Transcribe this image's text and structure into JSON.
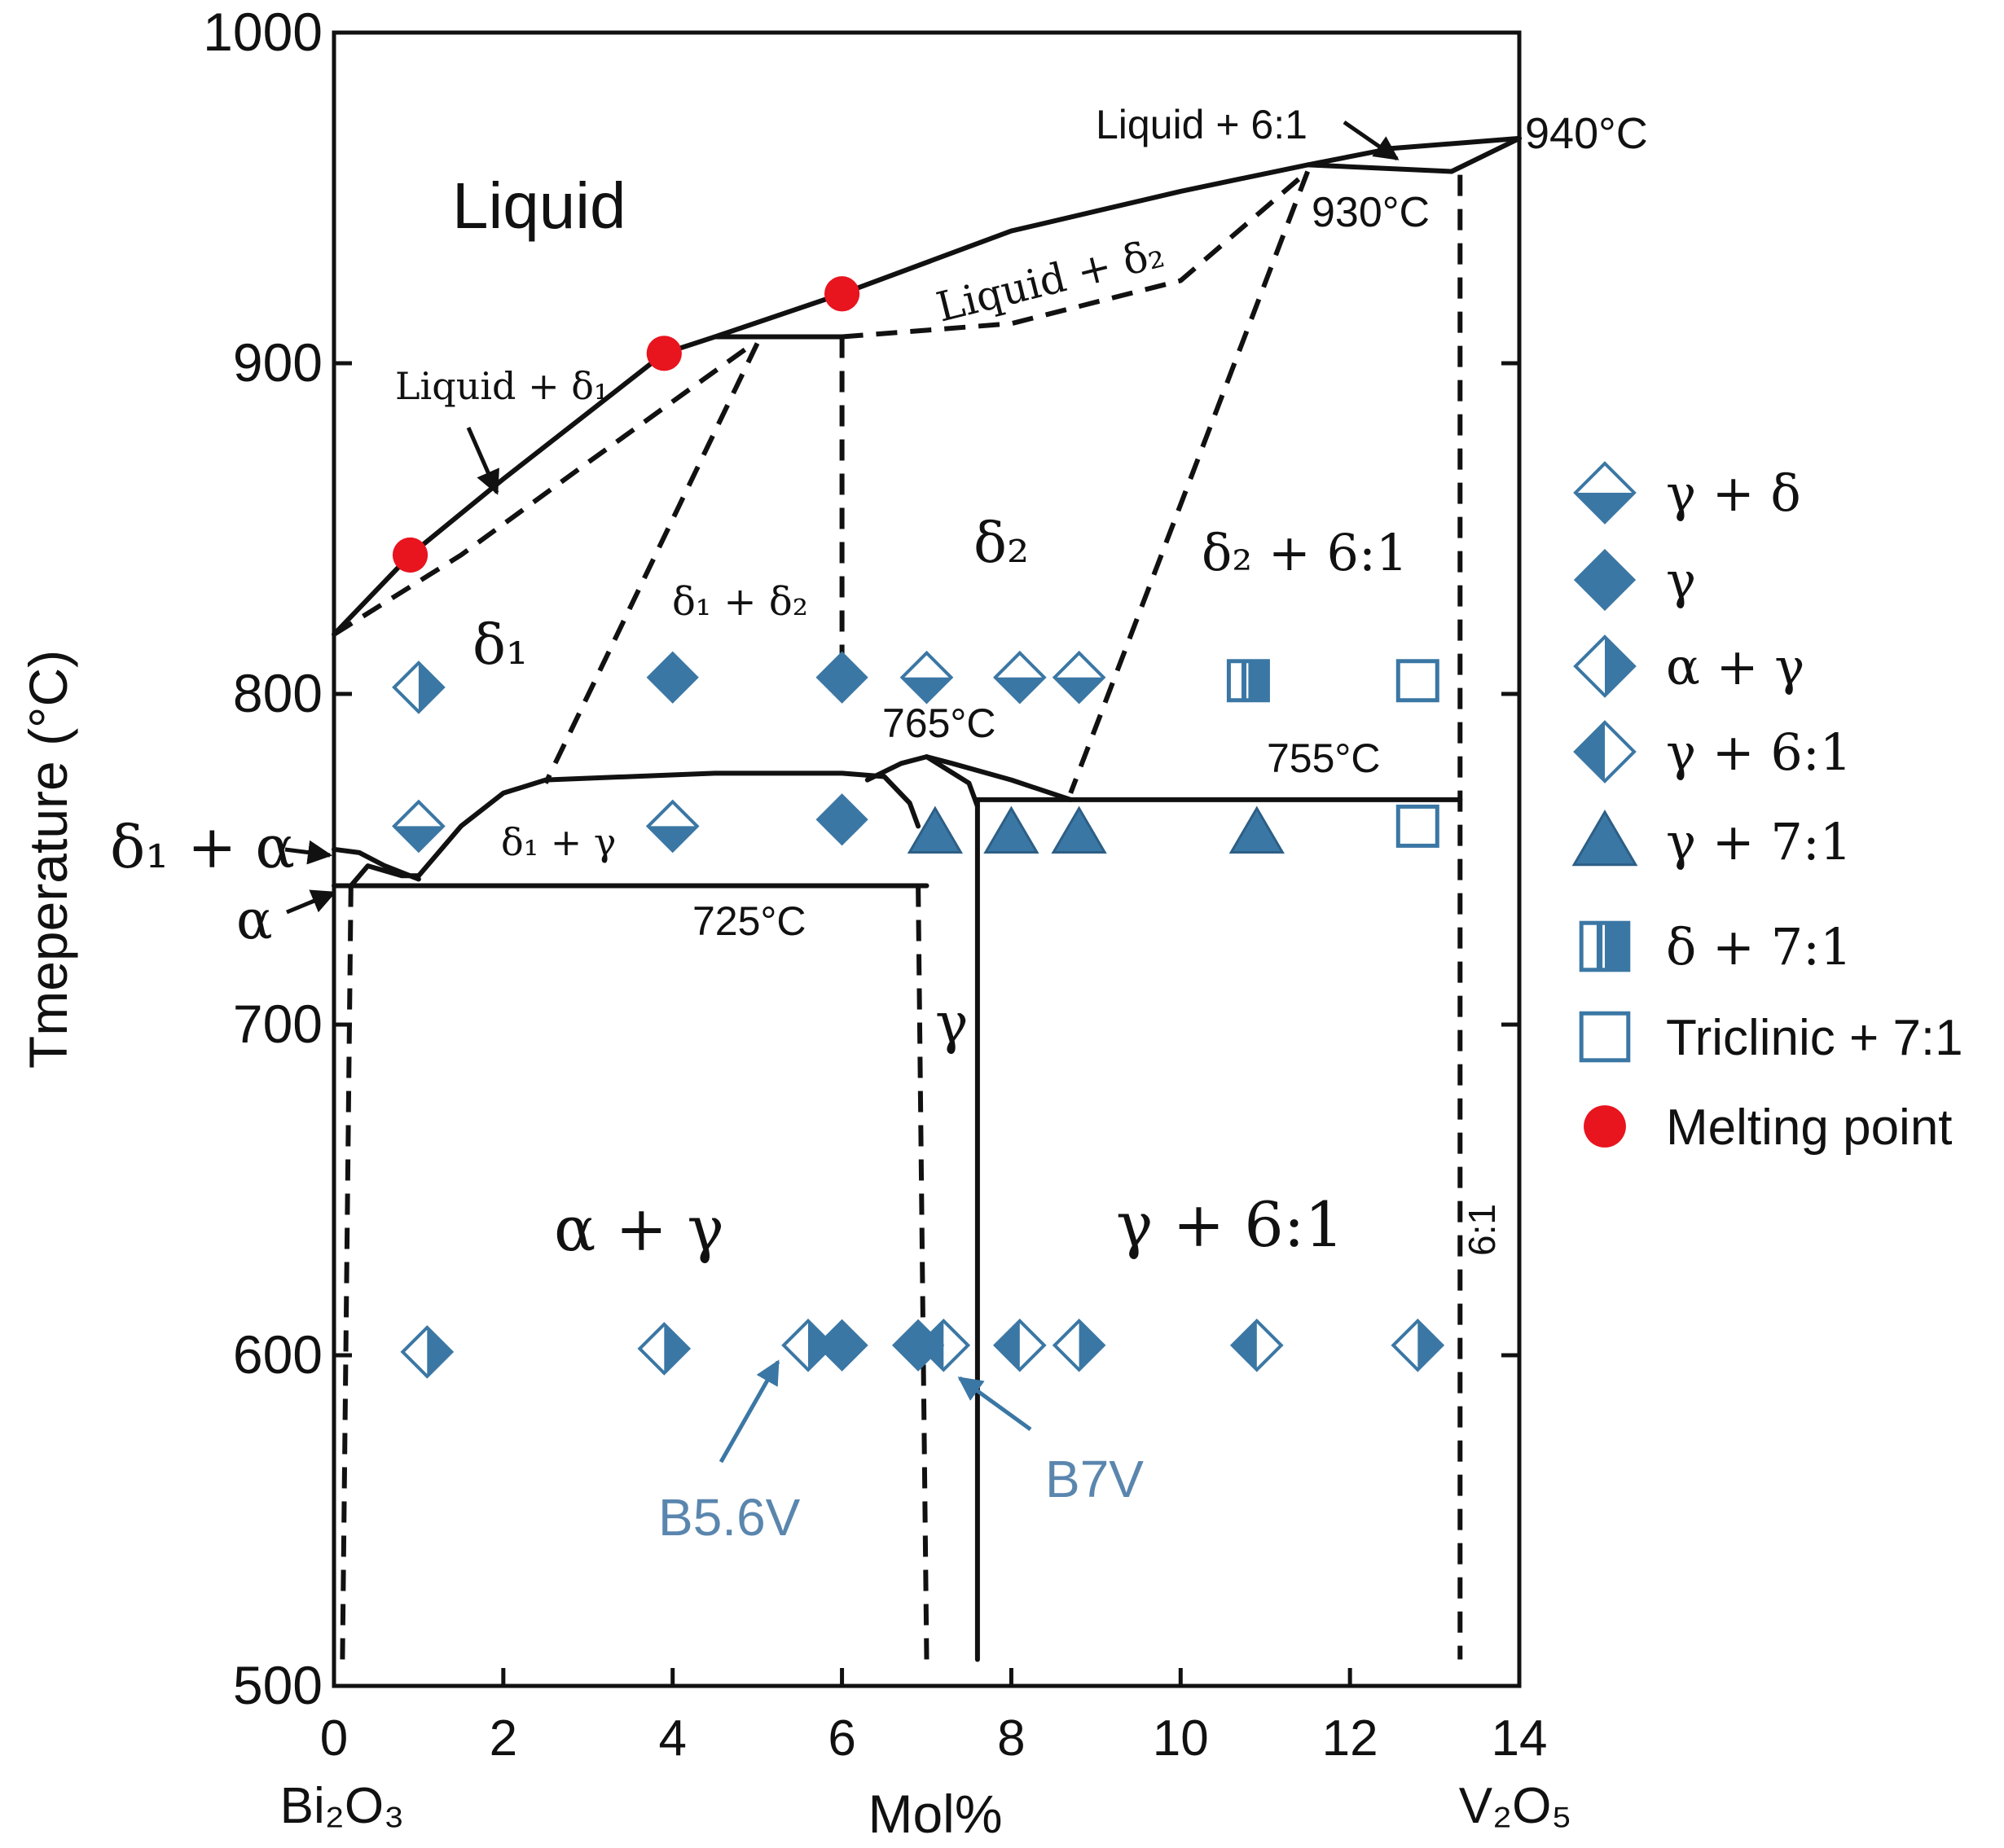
{
  "colors": {
    "marker": "#3B77A4",
    "marker_fill_light": "#ffffff",
    "melting": "#E8141E",
    "line": "#111111",
    "annotation": "#5A86AE"
  },
  "chart_data": {
    "type": "scatter",
    "title": "",
    "xlabel": "Mol%",
    "ylabel": "Tmeperature (°C)",
    "xlim": [
      0,
      14
    ],
    "ylim": [
      500,
      1000
    ],
    "x_ticks": [
      "0",
      "2",
      "4",
      "6",
      "8",
      "10",
      "12",
      "14"
    ],
    "y_ticks": [
      "500",
      "600",
      "700",
      "800",
      "900",
      "1000"
    ],
    "x_tick_values": [
      0,
      2,
      4,
      6,
      8,
      10,
      12,
      14
    ],
    "y_tick_values": [
      500,
      600,
      700,
      800,
      900,
      1000
    ],
    "x_end_labels": {
      "left": "Bi₂O₃",
      "right": "V₂O₅"
    },
    "series": [
      {
        "name": "γ + δ",
        "marker": "diamond-top-white",
        "points": [
          [
            1.0,
            760
          ],
          [
            4.0,
            760
          ],
          [
            7.0,
            805
          ],
          [
            8.1,
            805
          ],
          [
            8.8,
            805
          ]
        ]
      },
      {
        "name": "γ",
        "marker": "diamond-filled",
        "points": [
          [
            4.0,
            805
          ],
          [
            6.0,
            805
          ],
          [
            6.0,
            762
          ],
          [
            6.0,
            603
          ],
          [
            6.9,
            603
          ]
        ]
      },
      {
        "name": "α + γ",
        "marker": "diamond-left-white",
        "points": [
          [
            1.0,
            802
          ],
          [
            1.1,
            601
          ],
          [
            3.9,
            602
          ],
          [
            5.6,
            603
          ],
          [
            8.8,
            603
          ],
          [
            12.8,
            603
          ]
        ]
      },
      {
        "name": "γ + 6:1",
        "marker": "diamond-right-white",
        "points": [
          [
            7.2,
            603
          ],
          [
            8.1,
            603
          ],
          [
            10.9,
            603
          ]
        ]
      },
      {
        "name": "γ + 7:1",
        "marker": "triangle",
        "points": [
          [
            7.1,
            758
          ],
          [
            8.0,
            758
          ],
          [
            8.8,
            758
          ],
          [
            10.9,
            758
          ]
        ]
      },
      {
        "name": "δ + 7:1",
        "marker": "square-half",
        "points": [
          [
            10.8,
            804
          ]
        ]
      },
      {
        "name": "Triclinic + 7:1",
        "marker": "square-open",
        "points": [
          [
            12.8,
            804
          ],
          [
            12.8,
            760
          ]
        ]
      },
      {
        "name": "Melting point",
        "marker": "circle-red",
        "points": [
          [
            0.9,
            842
          ],
          [
            3.9,
            903
          ],
          [
            6.0,
            921
          ]
        ]
      }
    ],
    "phase_boundaries": [
      {
        "style": "solid",
        "points": [
          [
            0.0,
            818
          ],
          [
            0.9,
            842
          ],
          [
            2.0,
            865
          ],
          [
            3.0,
            885
          ],
          [
            3.9,
            903
          ],
          [
            4.5,
            908
          ],
          [
            6.0,
            921
          ],
          [
            8.0,
            940
          ],
          [
            10.0,
            952
          ],
          [
            11.5,
            960
          ],
          [
            12.5,
            965
          ],
          [
            14.0,
            968
          ]
        ]
      },
      {
        "style": "solid",
        "points": [
          [
            4.5,
            908
          ],
          [
            6.0,
            908
          ]
        ]
      },
      {
        "style": "solid",
        "points": [
          [
            11.5,
            960
          ],
          [
            13.2,
            958
          ],
          [
            14.0,
            968
          ]
        ]
      },
      {
        "style": "dashed",
        "points": [
          [
            0.0,
            818
          ],
          [
            1.5,
            842
          ],
          [
            3.0,
            870
          ],
          [
            4.9,
            905
          ]
        ]
      },
      {
        "style": "dashed",
        "points": [
          [
            6.0,
            908
          ],
          [
            8.0,
            912
          ],
          [
            10.0,
            925
          ],
          [
            11.5,
            958
          ]
        ]
      },
      {
        "style": "dashed",
        "points": [
          [
            6.0,
            908
          ],
          [
            6.0,
            801
          ]
        ]
      },
      {
        "style": "dashed",
        "points": [
          [
            5.0,
            906
          ],
          [
            2.5,
            773
          ]
        ]
      },
      {
        "style": "dashed",
        "points": [
          [
            11.5,
            958
          ],
          [
            8.7,
            770
          ]
        ]
      },
      {
        "style": "dashed",
        "points": [
          [
            13.3,
            957
          ],
          [
            13.3,
            508
          ]
        ]
      },
      {
        "style": "dashed",
        "points": [
          [
            0.2,
            742
          ],
          [
            0.1,
            508
          ]
        ]
      },
      {
        "style": "dashed",
        "points": [
          [
            6.9,
            742
          ],
          [
            7.0,
            508
          ]
        ]
      },
      {
        "style": "solid",
        "points": [
          [
            1.0,
            745
          ],
          [
            1.5,
            760
          ],
          [
            2.0,
            770
          ],
          [
            2.5,
            774
          ],
          [
            4.5,
            776
          ],
          [
            6.0,
            776
          ],
          [
            6.5,
            775
          ],
          [
            6.8,
            767
          ],
          [
            6.9,
            760
          ]
        ]
      },
      {
        "style": "solid",
        "points": [
          [
            6.3,
            774
          ],
          [
            6.7,
            779
          ],
          [
            7.0,
            781
          ],
          [
            7.3,
            779
          ],
          [
            8.0,
            774
          ],
          [
            8.7,
            768
          ]
        ]
      },
      {
        "style": "solid",
        "points": [
          [
            7.0,
            781
          ],
          [
            7.5,
            773
          ],
          [
            7.6,
            766
          ]
        ]
      },
      {
        "style": "solid",
        "points": [
          [
            7.6,
            768
          ],
          [
            13.3,
            768
          ]
        ]
      },
      {
        "style": "solid",
        "points": [
          [
            7.6,
            768
          ],
          [
            7.6,
            508
          ]
        ]
      },
      {
        "style": "solid",
        "points": [
          [
            0.0,
            742
          ],
          [
            7.0,
            742
          ]
        ]
      },
      {
        "style": "solid",
        "points": [
          [
            0.2,
            742
          ],
          [
            0.4,
            748
          ],
          [
            0.8,
            745
          ],
          [
            1.0,
            745
          ]
        ]
      },
      {
        "style": "solid",
        "points": [
          [
            0.0,
            753
          ],
          [
            0.3,
            752
          ],
          [
            0.6,
            748
          ],
          [
            1.0,
            744
          ]
        ]
      }
    ],
    "region_labels": {
      "liquid": "Liquid",
      "liquid_delta1": "Liquid + δ₁",
      "liquid_delta2": "Liquid + δ₂",
      "liquid_61": "Liquid + 6:1",
      "delta1": "δ₁",
      "delta2": "δ₂",
      "delta1_delta2": "δ₁ + δ₂",
      "delta2_61": "δ₂ + 6:1",
      "delta1_alpha": "δ₁ + α",
      "alpha": "α",
      "delta1_gamma": "δ₁ + γ",
      "gamma": "γ",
      "alpha_gamma": "α + γ",
      "gamma_61": "γ + 6:1",
      "label_61": "6:1"
    },
    "temperature_annotations": {
      "t940": "940°C",
      "t930": "930°C",
      "t765": "765°C",
      "t755": "755°C",
      "t725": "725°C"
    },
    "sample_annotations": {
      "b56v": "B5.6V",
      "b7v": "B7V"
    },
    "legend_placement": "right"
  }
}
